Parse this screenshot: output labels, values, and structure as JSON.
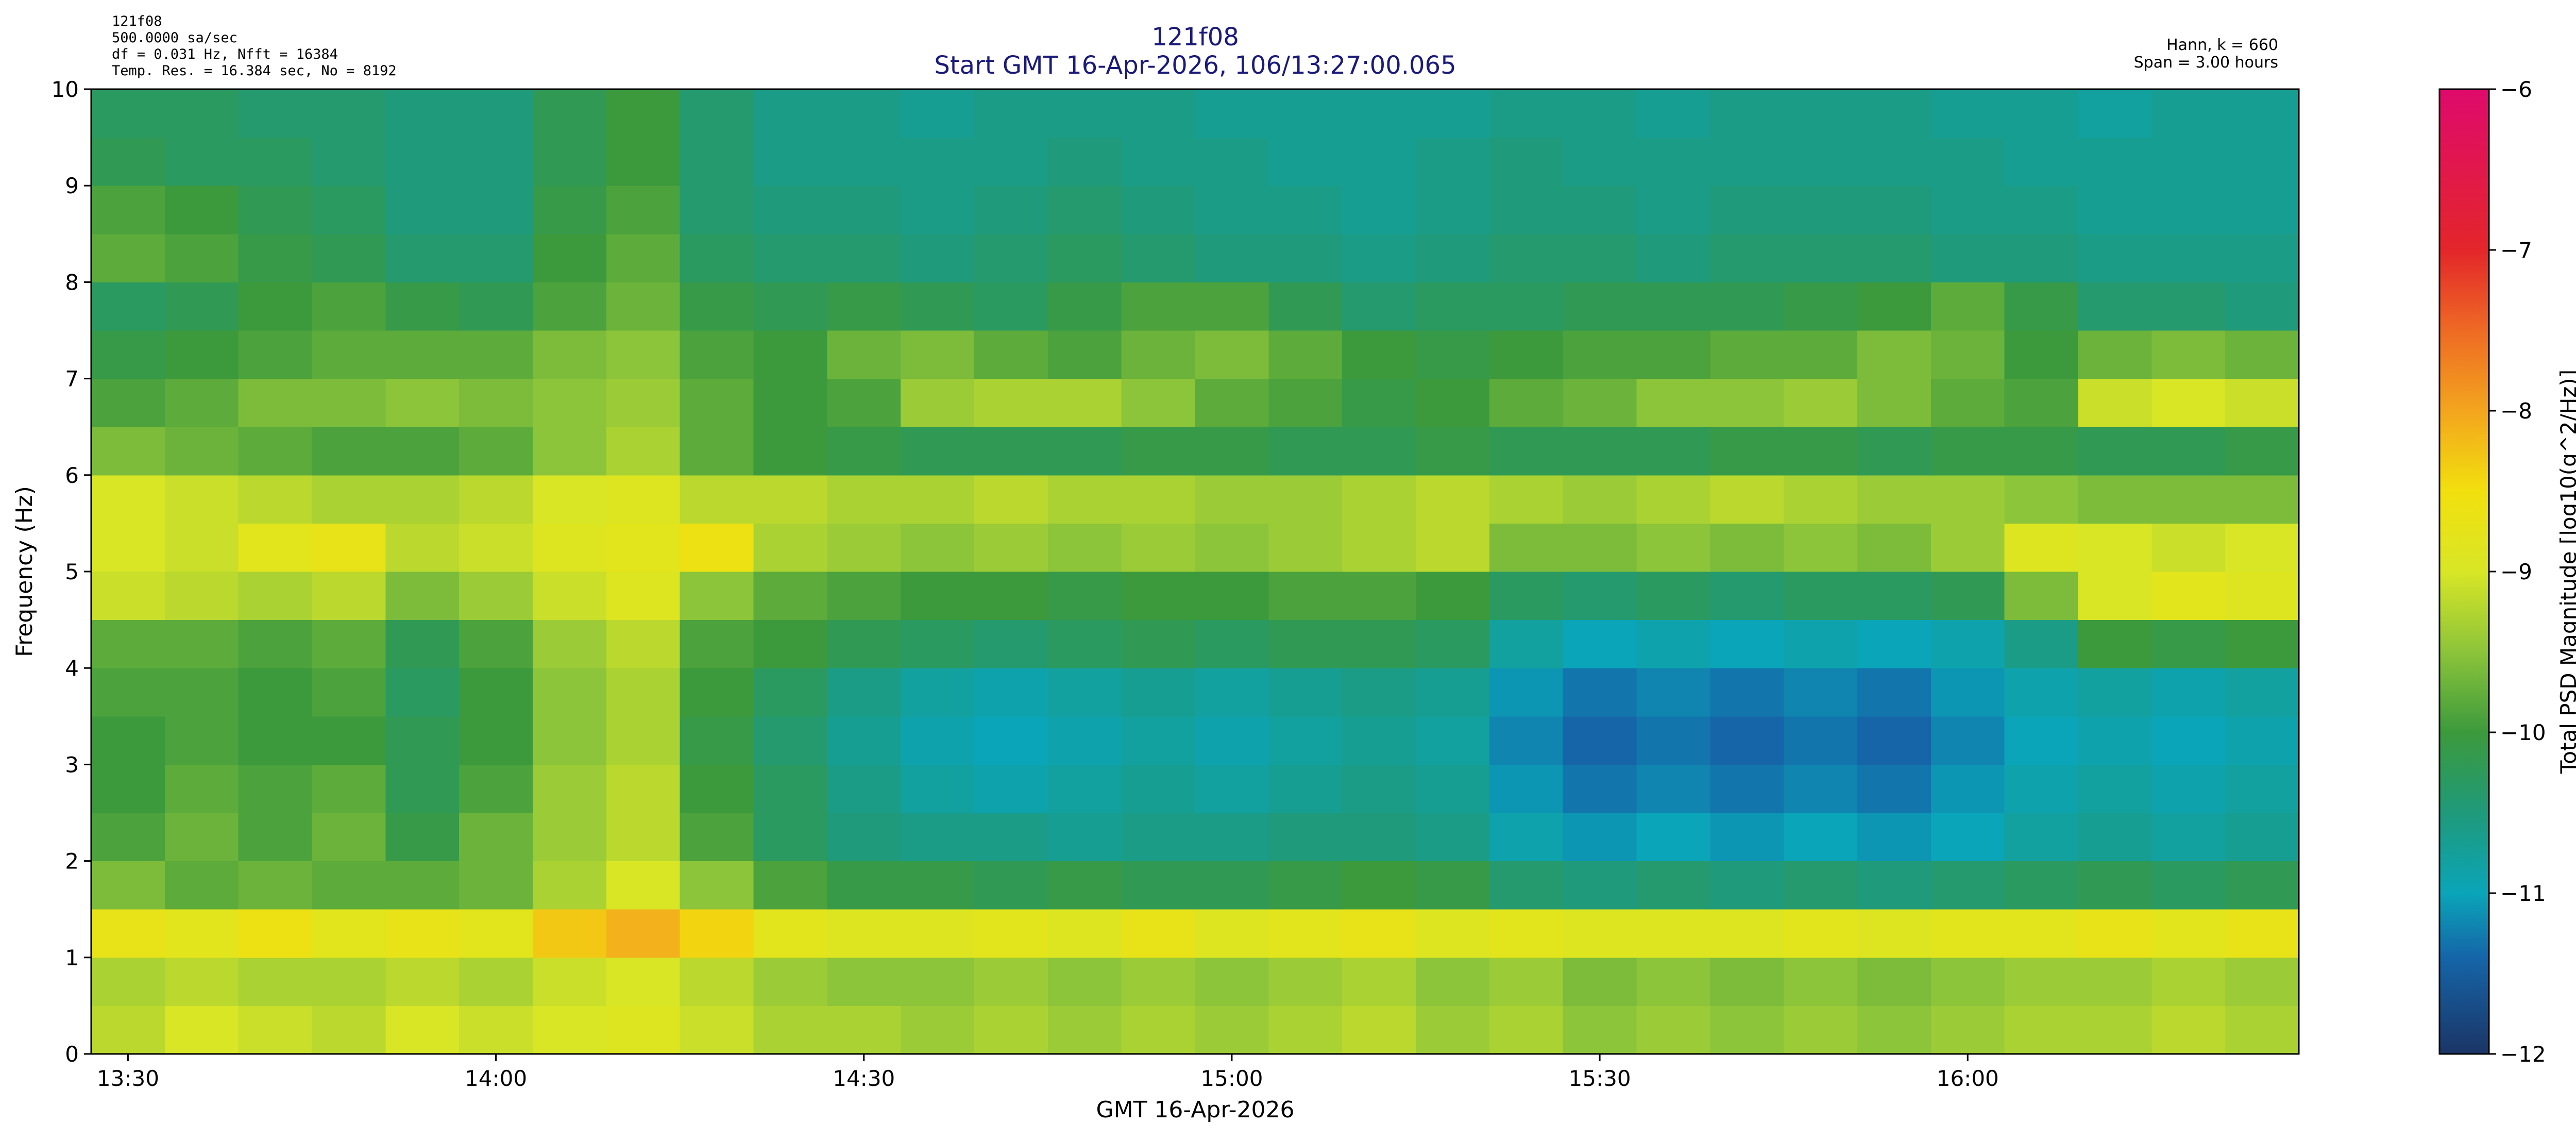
{
  "chart_data": {
    "type": "heatmap",
    "title": "121f08",
    "subtitle": "Start GMT 16-Apr-2026, 106/13:27:00.065",
    "annotations_left": [
      "121f08",
      "500.0000 sa/sec",
      "df = 0.031 Hz,  Nfft = 16384",
      "Temp. Res. = 16.384 sec, No = 8192"
    ],
    "annotations_right": [
      "Hann, k = 660",
      "Span = 3.00 hours"
    ],
    "xlabel": "GMT 16-Apr-2026",
    "ylabel": "Frequency (Hz)",
    "colorbar_label": "Total PSD Magnitude [log10(g^2/Hz)]",
    "xlim": [
      807,
      987
    ],
    "xticks": [
      {
        "value": 810,
        "label": "13:30"
      },
      {
        "value": 840,
        "label": "14:00"
      },
      {
        "value": 870,
        "label": "14:30"
      },
      {
        "value": 900,
        "label": "15:00"
      },
      {
        "value": 930,
        "label": "15:30"
      },
      {
        "value": 960,
        "label": "16:00"
      }
    ],
    "ylim": [
      0,
      10
    ],
    "yticks": [
      0,
      1,
      2,
      3,
      4,
      5,
      6,
      7,
      8,
      9,
      10
    ],
    "zlim": [
      -12,
      -6
    ],
    "zticks": [
      {
        "value": -12,
        "label": "−12"
      },
      {
        "value": -11,
        "label": "−11"
      },
      {
        "value": -10,
        "label": "−10"
      },
      {
        "value": -9,
        "label": "−9"
      },
      {
        "value": -8,
        "label": "−8"
      },
      {
        "value": -7,
        "label": "−7"
      },
      {
        "value": -6,
        "label": "−6"
      }
    ],
    "colorscale": [
      [
        -12,
        "#1b3566"
      ],
      [
        -11.4,
        "#1565a8"
      ],
      [
        -11,
        "#0aa5b8"
      ],
      [
        -10.5,
        "#1f9a7a"
      ],
      [
        -10,
        "#3c9a3c"
      ],
      [
        -9.5,
        "#8cc43a"
      ],
      [
        -9,
        "#d8e626"
      ],
      [
        -8.5,
        "#f2e00e"
      ],
      [
        -8,
        "#f3a51e"
      ],
      [
        -7.5,
        "#ee6a24"
      ],
      [
        -7,
        "#e3262a"
      ],
      [
        -6,
        "#df0a6c"
      ]
    ],
    "x": [
      810,
      816,
      822,
      828,
      834,
      840,
      846,
      852,
      858,
      864,
      870,
      876,
      882,
      888,
      894,
      900,
      906,
      912,
      918,
      924,
      930,
      936,
      942,
      948,
      954,
      960,
      966,
      972,
      978,
      984
    ],
    "y": [
      0.25,
      0.75,
      1.25,
      1.75,
      2.25,
      2.75,
      3.25,
      3.75,
      4.25,
      4.75,
      5.25,
      5.75,
      6.25,
      6.75,
      7.25,
      7.75,
      8.25,
      8.75,
      9.25,
      9.75
    ],
    "z": [
      [
        -9.2,
        -9.0,
        -9.1,
        -9.2,
        -9.0,
        -9.1,
        -9.0,
        -8.9,
        -9.1,
        -9.3,
        -9.3,
        -9.4,
        -9.3,
        -9.4,
        -9.3,
        -9.4,
        -9.3,
        -9.2,
        -9.4,
        -9.3,
        -9.5,
        -9.4,
        -9.5,
        -9.4,
        -9.5,
        -9.4,
        -9.3,
        -9.3,
        -9.2,
        -9.3
      ],
      [
        -9.3,
        -9.2,
        -9.3,
        -9.3,
        -9.2,
        -9.3,
        -9.1,
        -9.0,
        -9.2,
        -9.4,
        -9.5,
        -9.5,
        -9.4,
        -9.5,
        -9.4,
        -9.5,
        -9.4,
        -9.3,
        -9.5,
        -9.4,
        -9.6,
        -9.5,
        -9.6,
        -9.5,
        -9.6,
        -9.5,
        -9.4,
        -9.4,
        -9.3,
        -9.4
      ],
      [
        -8.7,
        -8.8,
        -8.6,
        -8.8,
        -8.7,
        -8.8,
        -8.3,
        -8.1,
        -8.4,
        -8.8,
        -8.9,
        -8.9,
        -8.8,
        -8.9,
        -8.7,
        -8.9,
        -8.8,
        -8.7,
        -8.9,
        -8.8,
        -8.9,
        -8.9,
        -8.9,
        -8.8,
        -8.9,
        -8.8,
        -8.8,
        -8.7,
        -8.8,
        -8.7
      ],
      [
        -9.6,
        -9.8,
        -9.7,
        -9.8,
        -9.8,
        -9.7,
        -9.3,
        -9.0,
        -9.5,
        -9.9,
        -10.1,
        -10.1,
        -10.2,
        -10.1,
        -10.2,
        -10.2,
        -10.1,
        -10.0,
        -10.1,
        -10.4,
        -10.5,
        -10.4,
        -10.5,
        -10.4,
        -10.5,
        -10.4,
        -10.3,
        -10.2,
        -10.3,
        -10.2
      ],
      [
        -9.9,
        -9.7,
        -9.9,
        -9.7,
        -10.1,
        -9.7,
        -9.4,
        -9.2,
        -9.9,
        -10.3,
        -10.5,
        -10.6,
        -10.6,
        -10.7,
        -10.6,
        -10.6,
        -10.5,
        -10.5,
        -10.6,
        -10.9,
        -11.1,
        -11.0,
        -11.1,
        -11.0,
        -11.1,
        -11.0,
        -10.8,
        -10.7,
        -10.8,
        -10.7
      ],
      [
        -10.0,
        -9.8,
        -9.9,
        -9.8,
        -10.2,
        -9.9,
        -9.4,
        -9.2,
        -10.0,
        -10.3,
        -10.6,
        -10.8,
        -10.9,
        -10.8,
        -10.7,
        -10.8,
        -10.7,
        -10.6,
        -10.7,
        -11.1,
        -11.3,
        -11.2,
        -11.3,
        -11.2,
        -11.3,
        -11.1,
        -10.9,
        -10.8,
        -10.9,
        -10.8
      ],
      [
        -10.0,
        -9.9,
        -10.0,
        -10.0,
        -10.2,
        -10.0,
        -9.5,
        -9.3,
        -10.1,
        -10.4,
        -10.7,
        -10.9,
        -11.0,
        -10.9,
        -10.8,
        -10.9,
        -10.8,
        -10.7,
        -10.8,
        -11.2,
        -11.4,
        -11.3,
        -11.4,
        -11.3,
        -11.4,
        -11.2,
        -11.0,
        -10.9,
        -11.0,
        -10.9
      ],
      [
        -9.9,
        -9.9,
        -10.0,
        -9.9,
        -10.3,
        -10.0,
        -9.5,
        -9.3,
        -10.0,
        -10.3,
        -10.6,
        -10.8,
        -10.9,
        -10.8,
        -10.7,
        -10.8,
        -10.7,
        -10.6,
        -10.7,
        -11.1,
        -11.3,
        -11.2,
        -11.3,
        -11.2,
        -11.3,
        -11.1,
        -10.9,
        -10.8,
        -10.9,
        -10.8
      ],
      [
        -9.8,
        -9.8,
        -9.9,
        -9.8,
        -10.2,
        -9.9,
        -9.4,
        -9.2,
        -9.9,
        -10.0,
        -10.2,
        -10.3,
        -10.4,
        -10.3,
        -10.2,
        -10.3,
        -10.2,
        -10.2,
        -10.3,
        -10.8,
        -11.0,
        -10.9,
        -11.0,
        -10.9,
        -11.0,
        -10.9,
        -10.6,
        -10.0,
        -10.1,
        -10.0
      ],
      [
        -9.1,
        -9.2,
        -9.3,
        -9.2,
        -9.6,
        -9.4,
        -9.1,
        -8.9,
        -9.5,
        -9.8,
        -9.9,
        -10.0,
        -10.0,
        -10.1,
        -10.0,
        -10.0,
        -9.9,
        -9.9,
        -10.0,
        -10.3,
        -10.4,
        -10.3,
        -10.4,
        -10.3,
        -10.3,
        -10.2,
        -9.6,
        -9.0,
        -8.8,
        -8.9
      ],
      [
        -9.0,
        -9.1,
        -8.8,
        -8.7,
        -9.2,
        -9.1,
        -8.9,
        -8.8,
        -8.6,
        -9.3,
        -9.4,
        -9.5,
        -9.4,
        -9.5,
        -9.4,
        -9.5,
        -9.4,
        -9.3,
        -9.2,
        -9.6,
        -9.6,
        -9.5,
        -9.6,
        -9.5,
        -9.6,
        -9.4,
        -8.9,
        -9.0,
        -9.1,
        -9.0
      ],
      [
        -9.0,
        -9.1,
        -9.2,
        -9.3,
        -9.3,
        -9.2,
        -9.0,
        -8.9,
        -9.2,
        -9.2,
        -9.3,
        -9.3,
        -9.2,
        -9.3,
        -9.3,
        -9.4,
        -9.4,
        -9.3,
        -9.2,
        -9.3,
        -9.4,
        -9.3,
        -9.2,
        -9.3,
        -9.4,
        -9.4,
        -9.5,
        -9.6,
        -9.6,
        -9.6
      ],
      [
        -9.6,
        -9.7,
        -9.8,
        -9.9,
        -9.9,
        -9.8,
        -9.5,
        -9.3,
        -9.8,
        -10.0,
        -10.1,
        -10.2,
        -10.2,
        -10.2,
        -10.1,
        -10.1,
        -10.2,
        -10.2,
        -10.1,
        -10.2,
        -10.2,
        -10.2,
        -10.1,
        -10.1,
        -10.2,
        -10.1,
        -10.1,
        -10.2,
        -10.2,
        -10.1
      ],
      [
        -9.9,
        -9.8,
        -9.6,
        -9.6,
        -9.5,
        -9.6,
        -9.5,
        -9.4,
        -9.8,
        -10.0,
        -9.9,
        -9.4,
        -9.3,
        -9.3,
        -9.5,
        -9.8,
        -9.9,
        -10.1,
        -10.0,
        -9.8,
        -9.7,
        -9.5,
        -9.5,
        -9.4,
        -9.6,
        -9.8,
        -9.9,
        -9.1,
        -9.0,
        -9.1
      ],
      [
        -10.1,
        -10.0,
        -9.9,
        -9.8,
        -9.8,
        -9.8,
        -9.6,
        -9.5,
        -9.9,
        -10.0,
        -9.7,
        -9.6,
        -9.8,
        -9.9,
        -9.7,
        -9.6,
        -9.8,
        -10.0,
        -10.1,
        -10.0,
        -9.9,
        -9.9,
        -9.8,
        -9.8,
        -9.6,
        -9.7,
        -10.0,
        -9.7,
        -9.6,
        -9.7
      ],
      [
        -10.3,
        -10.2,
        -10.0,
        -9.9,
        -10.1,
        -10.2,
        -9.9,
        -9.7,
        -10.1,
        -10.2,
        -10.1,
        -10.2,
        -10.3,
        -10.1,
        -9.9,
        -9.9,
        -10.2,
        -10.4,
        -10.3,
        -10.3,
        -10.2,
        -10.2,
        -10.2,
        -10.1,
        -10.0,
        -9.8,
        -10.1,
        -10.4,
        -10.4,
        -10.5
      ],
      [
        -9.8,
        -9.9,
        -10.1,
        -10.2,
        -10.4,
        -10.4,
        -10.0,
        -9.8,
        -10.3,
        -10.4,
        -10.4,
        -10.5,
        -10.4,
        -10.3,
        -10.4,
        -10.5,
        -10.5,
        -10.6,
        -10.5,
        -10.4,
        -10.4,
        -10.5,
        -10.4,
        -10.4,
        -10.4,
        -10.5,
        -10.5,
        -10.6,
        -10.6,
        -10.6
      ],
      [
        -9.9,
        -10.0,
        -10.2,
        -10.3,
        -10.5,
        -10.5,
        -10.1,
        -9.9,
        -10.4,
        -10.5,
        -10.5,
        -10.6,
        -10.5,
        -10.4,
        -10.5,
        -10.6,
        -10.6,
        -10.7,
        -10.6,
        -10.5,
        -10.5,
        -10.6,
        -10.5,
        -10.5,
        -10.5,
        -10.6,
        -10.6,
        -10.7,
        -10.7,
        -10.7
      ],
      [
        -10.2,
        -10.3,
        -10.3,
        -10.4,
        -10.5,
        -10.5,
        -10.2,
        -10.0,
        -10.4,
        -10.6,
        -10.6,
        -10.6,
        -10.6,
        -10.5,
        -10.6,
        -10.6,
        -10.7,
        -10.7,
        -10.6,
        -10.5,
        -10.6,
        -10.6,
        -10.6,
        -10.6,
        -10.6,
        -10.6,
        -10.7,
        -10.7,
        -10.7,
        -10.7
      ],
      [
        -10.3,
        -10.3,
        -10.4,
        -10.4,
        -10.5,
        -10.5,
        -10.2,
        -10.0,
        -10.4,
        -10.6,
        -10.6,
        -10.7,
        -10.6,
        -10.6,
        -10.6,
        -10.7,
        -10.7,
        -10.7,
        -10.7,
        -10.6,
        -10.6,
        -10.7,
        -10.6,
        -10.6,
        -10.6,
        -10.7,
        -10.7,
        -10.8,
        -10.7,
        -10.7
      ]
    ]
  }
}
